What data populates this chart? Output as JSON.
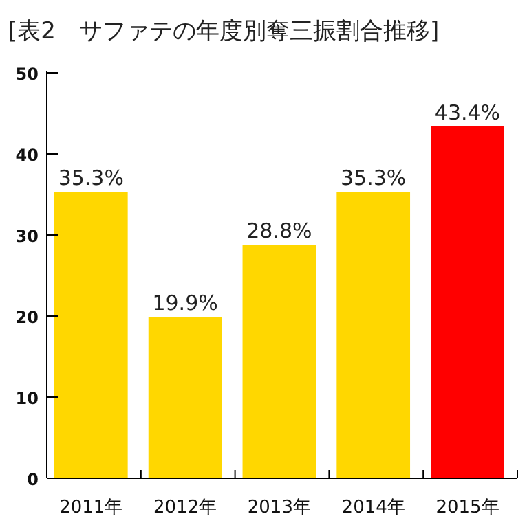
{
  "chart_data": {
    "type": "bar",
    "title": "[表2　サファテの年度別奪三振割合推移]",
    "categories": [
      "2011年",
      "2012年",
      "2013年",
      "2014年",
      "2015年"
    ],
    "values": [
      35.3,
      19.9,
      28.8,
      35.3,
      43.4
    ],
    "colors": [
      "#ffd700",
      "#ffd700",
      "#ffd700",
      "#ffd700",
      "#ff0000"
    ],
    "value_labels": [
      "35.3%",
      "19.9%",
      "28.8%",
      "35.3%",
      "43.4%"
    ],
    "ylim": [
      0,
      50
    ],
    "yticks": [
      0,
      10,
      20,
      30,
      40,
      50
    ],
    "grid": false
  }
}
